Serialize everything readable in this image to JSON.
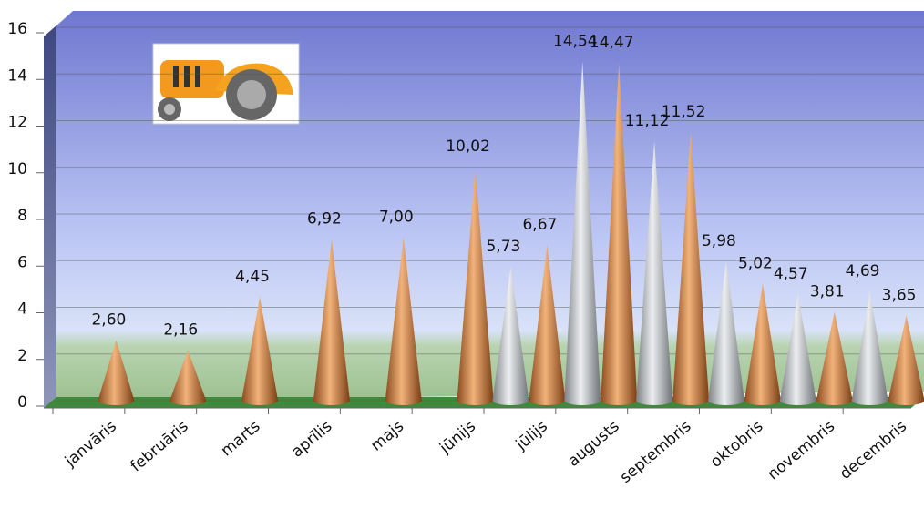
{
  "chart_data": {
    "type": "cone-bar",
    "categories": [
      "janvāris",
      "februāris",
      "marts",
      "aprīlis",
      "majs",
      "jūnijs",
      "jūlijs",
      "augusts",
      "septembris",
      "oktobris",
      "novembris",
      "decembris"
    ],
    "series": [
      {
        "color": "#c0c4c8",
        "values": [
          null,
          null,
          null,
          null,
          null,
          null,
          5.73,
          14.54,
          11.12,
          5.98,
          4.57,
          4.69
        ],
        "value_labels": [
          null,
          null,
          null,
          null,
          null,
          null,
          "5,73",
          "14,54",
          "11,12",
          "5,98",
          "4,57",
          "4,69"
        ]
      },
      {
        "color": "#d98a4a",
        "values": [
          2.6,
          2.16,
          4.45,
          6.92,
          7.0,
          10.02,
          6.67,
          14.47,
          11.52,
          5.02,
          3.81,
          3.65
        ],
        "value_labels": [
          "2,60",
          "2,16",
          "4,45",
          "6,92",
          "7,00",
          "10,02",
          "6,67",
          "14,47",
          "11,52",
          "5,02",
          "3,81",
          "3,65"
        ]
      }
    ],
    "ylim": [
      0,
      16
    ],
    "yticks": [
      0,
      2,
      4,
      6,
      8,
      10,
      12,
      14,
      16
    ],
    "grid": true
  }
}
